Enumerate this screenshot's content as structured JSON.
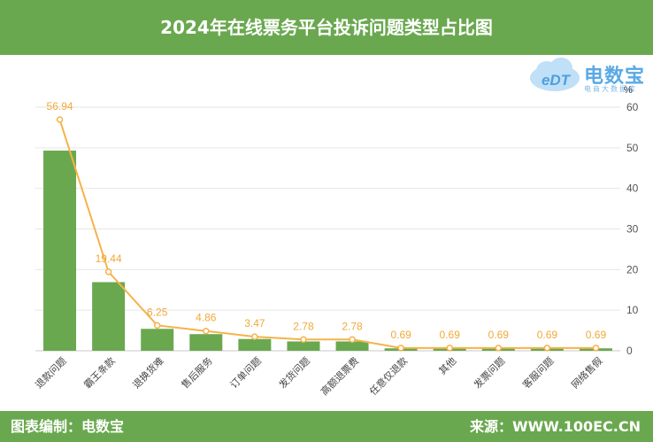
{
  "header": {
    "title": "2024年在线票务平台投诉问题类型占比图"
  },
  "footer": {
    "left": "图表编制：电数宝",
    "right": "来源：WWW.100EC.CN"
  },
  "logo": {
    "mark": "eDT",
    "brand": "电数宝",
    "sub": "电商大数据库"
  },
  "colors": {
    "bar": "#6aa84f",
    "line": "#f6b24a",
    "label": "#f0a93a",
    "grid": "#e6e6e6",
    "axis": "#555555"
  },
  "chart_data": {
    "type": "bar",
    "categories": [
      "退款问题",
      "霸王条款",
      "退换货难",
      "售后服务",
      "订单问题",
      "发货问题",
      "高额退票费",
      "任意仅退款",
      "其他",
      "发票问题",
      "客服问题",
      "网络售假"
    ],
    "values": [
      49.3,
      16.9,
      5.4,
      4.1,
      2.9,
      2.3,
      2.3,
      0.6,
      0.6,
      0.6,
      0.6,
      0.6
    ],
    "line_values": [
      56.94,
      19.44,
      6.25,
      4.86,
      3.47,
      2.78,
      2.78,
      0.69,
      0.69,
      0.69,
      0.69,
      0.69
    ],
    "line_labels": [
      "56.94",
      "19.44",
      "6.25",
      "4.86",
      "3.47",
      "2.78",
      "2.78",
      "0.69",
      "0.69",
      "0.69",
      "0.69",
      "0.69"
    ],
    "y_ticks": [
      "0",
      "10",
      "20",
      "30",
      "40",
      "50",
      "60"
    ],
    "ylim": [
      0,
      60
    ],
    "yunit": "%",
    "grid": true
  }
}
